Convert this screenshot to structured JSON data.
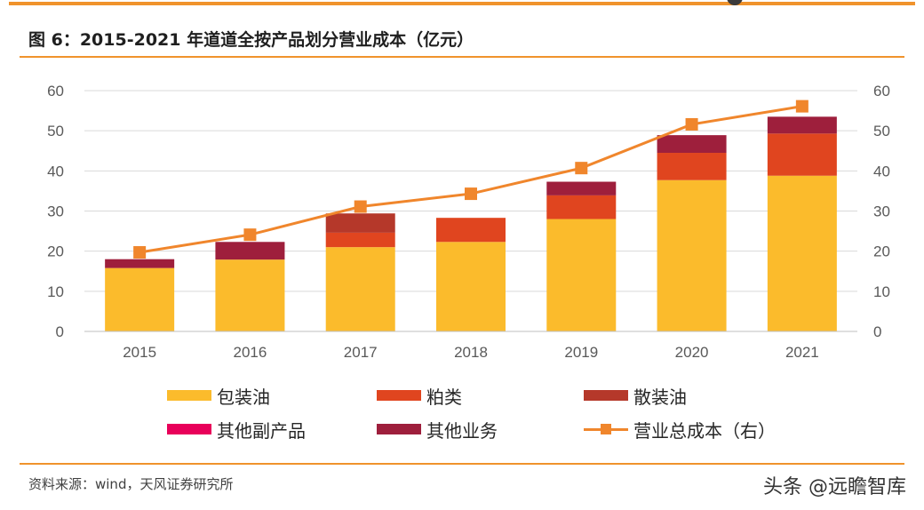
{
  "title": "图 6：2015-2021 年道道全按产品划分营业成本（亿元）",
  "source": "资料来源：wind，天风证券研究所",
  "watermark": "头条 @远瞻智库",
  "colors": {
    "accent_rule": "#f0932c",
    "包装油": "#fbbb2c",
    "粕类": "#e0451f",
    "散装油": "#b5382a",
    "其他副产品": "#e8005a",
    "其他业务": "#9e1f3c",
    "营业总成本": "#f0862c"
  },
  "legend": [
    {
      "label": "包装油",
      "kind": "bar",
      "color": "#fbbb2c"
    },
    {
      "label": "粕类",
      "kind": "bar",
      "color": "#e0451f"
    },
    {
      "label": "散装油",
      "kind": "bar",
      "color": "#b5382a"
    },
    {
      "label": "其他副产品",
      "kind": "bar",
      "color": "#e8005a"
    },
    {
      "label": "其他业务",
      "kind": "bar",
      "color": "#9e1f3c"
    },
    {
      "label": "营业总成本（右）",
      "kind": "line",
      "color": "#f0862c"
    }
  ],
  "chart_data": {
    "type": "bar",
    "stacked": true,
    "categories": [
      "2015",
      "2016",
      "2017",
      "2018",
      "2019",
      "2020",
      "2021"
    ],
    "series": [
      {
        "name": "包装油",
        "values": [
          15.8,
          17.9,
          21.0,
          22.3,
          28.0,
          37.7,
          38.8
        ],
        "color": "#fbbb2c"
      },
      {
        "name": "粕类",
        "values": [
          0,
          0,
          3.6,
          6.0,
          5.9,
          6.8,
          10.5
        ],
        "color": "#e0451f"
      },
      {
        "name": "散装油",
        "values": [
          0,
          0,
          4.8,
          0,
          0,
          0,
          0
        ],
        "color": "#b5382a"
      },
      {
        "name": "其他副产品",
        "values": [
          0,
          0,
          0,
          0,
          0,
          0,
          0
        ],
        "color": "#e8005a"
      },
      {
        "name": "其他业务",
        "values": [
          2.2,
          4.4,
          0,
          0,
          3.4,
          4.4,
          4.2
        ],
        "color": "#9e1f3c"
      }
    ],
    "line_series": {
      "name": "营业总成本（右）",
      "values": [
        19.7,
        24.1,
        31.1,
        34.3,
        40.7,
        51.6,
        56.1
      ],
      "color": "#f0862c",
      "axis": "right"
    },
    "ylim": [
      0,
      60
    ],
    "y2lim": [
      0,
      60
    ],
    "yticks": [
      "0",
      "10",
      "20",
      "30",
      "40",
      "50",
      "60"
    ],
    "y2ticks": [
      "0",
      "10",
      "20",
      "30",
      "40",
      "50",
      "60"
    ],
    "grid": true,
    "legend_position": "bottom"
  }
}
